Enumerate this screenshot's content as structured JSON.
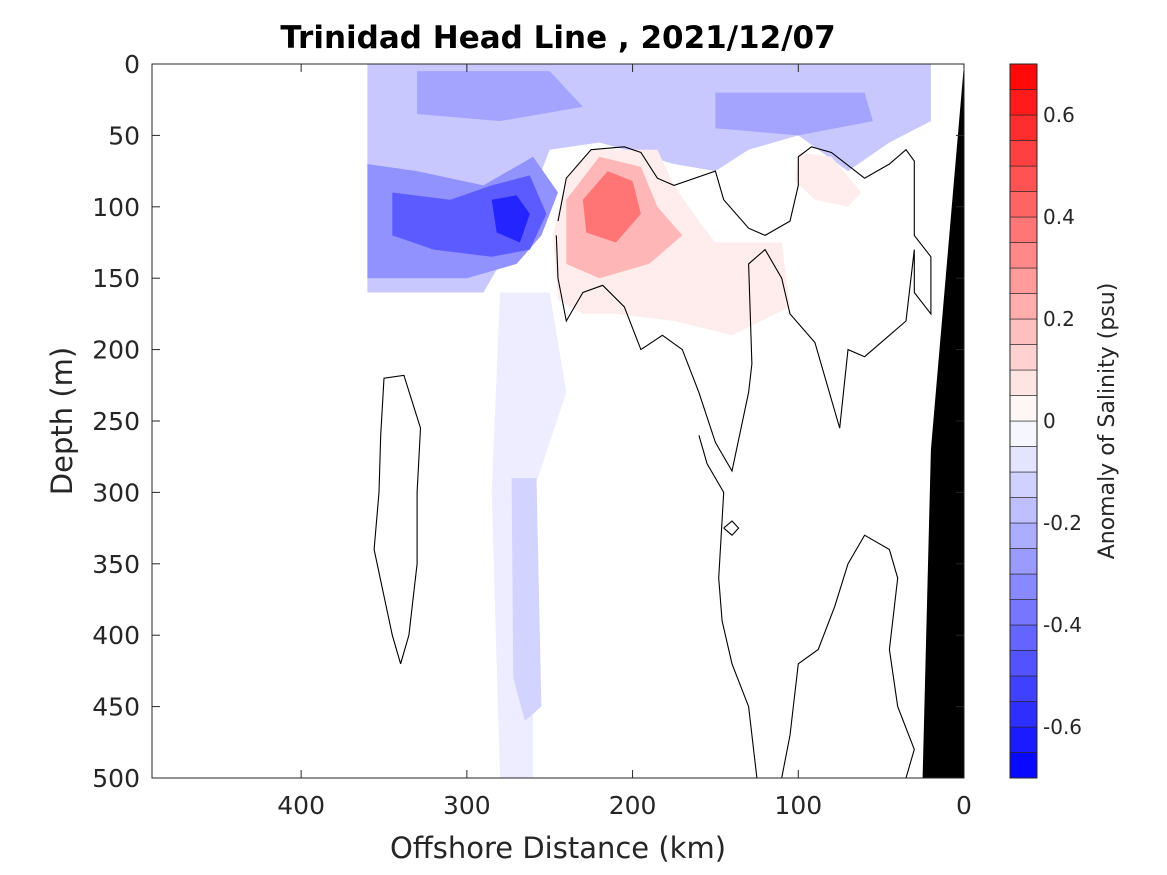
{
  "chart_data": {
    "type": "heatmap",
    "title": "Trinidad Head Line , 2021/12/07",
    "xlabel": "Offshore Distance (km)",
    "ylabel": "Depth (m)",
    "xlim": [
      490,
      0
    ],
    "ylim": [
      0,
      500
    ],
    "x_reversed": true,
    "y_reversed": true,
    "xticks": [
      400,
      300,
      200,
      100,
      0
    ],
    "xtick_labels": [
      "400",
      "300",
      "200",
      "100",
      "0"
    ],
    "yticks": [
      0,
      50,
      100,
      150,
      200,
      250,
      300,
      350,
      400,
      450,
      500
    ],
    "ytick_labels": [
      "0",
      "50",
      "100",
      "150",
      "200",
      "250",
      "300",
      "350",
      "400",
      "450",
      "500"
    ],
    "colorbar": {
      "label": "Anomaly of Salinity (psu)",
      "range": [
        -0.7,
        0.7
      ],
      "step": 0.05,
      "ticks": [
        -0.6,
        -0.4,
        -0.2,
        0,
        0.2,
        0.4,
        0.6
      ],
      "tick_labels": [
        "-0.6",
        "-0.4",
        "-0.2",
        "0",
        "0.2",
        "0.4",
        "0.6"
      ],
      "neg_color": "#0000ff",
      "pos_color": "#ff0000",
      "mid_color": "#ffffff"
    },
    "data_extent_km": [
      20,
      360
    ],
    "bathymetry_color": "#000000",
    "zero_contour_color": "#000000",
    "fields": [
      {
        "name": "upper-negative-layer",
        "polygon": [
          [
            360,
            0
          ],
          [
            20,
            0
          ],
          [
            20,
            40
          ],
          [
            45,
            55
          ],
          [
            70,
            75
          ],
          [
            100,
            50
          ],
          [
            130,
            60
          ],
          [
            150,
            75
          ],
          [
            175,
            70
          ],
          [
            220,
            55
          ],
          [
            250,
            60
          ],
          [
            270,
            120
          ],
          [
            290,
            160
          ],
          [
            330,
            160
          ],
          [
            360,
            160
          ]
        ],
        "value": -0.15
      },
      {
        "name": "near-surface-core-a",
        "polygon": [
          [
            330,
            5
          ],
          [
            250,
            5
          ],
          [
            230,
            30
          ],
          [
            280,
            40
          ],
          [
            330,
            35
          ]
        ],
        "value": -0.25
      },
      {
        "name": "near-surface-core-b",
        "polygon": [
          [
            150,
            20
          ],
          [
            60,
            20
          ],
          [
            55,
            40
          ],
          [
            100,
            50
          ],
          [
            150,
            45
          ]
        ],
        "value": -0.25
      },
      {
        "name": "subsurface-negative",
        "polygon": [
          [
            360,
            70
          ],
          [
            330,
            75
          ],
          [
            290,
            85
          ],
          [
            260,
            65
          ],
          [
            245,
            90
          ],
          [
            255,
            120
          ],
          [
            270,
            140
          ],
          [
            300,
            150
          ],
          [
            360,
            150
          ]
        ],
        "value": -0.3
      },
      {
        "name": "subsurface-core-outer",
        "polygon": [
          [
            345,
            90
          ],
          [
            310,
            95
          ],
          [
            285,
            85
          ],
          [
            262,
            78
          ],
          [
            252,
            105
          ],
          [
            262,
            130
          ],
          [
            285,
            135
          ],
          [
            320,
            130
          ],
          [
            345,
            120
          ]
        ],
        "value": -0.45
      },
      {
        "name": "subsurface-core-inner",
        "polygon": [
          [
            285,
            95
          ],
          [
            270,
            92
          ],
          [
            262,
            105
          ],
          [
            268,
            125
          ],
          [
            282,
            118
          ]
        ],
        "value": -0.6
      },
      {
        "name": "deep-negative-column",
        "polygon": [
          [
            280,
            160
          ],
          [
            250,
            160
          ],
          [
            240,
            230
          ],
          [
            260,
            300
          ],
          [
            260,
            500
          ],
          [
            280,
            500
          ],
          [
            285,
            300
          ]
        ],
        "value": -0.05
      },
      {
        "name": "deep-negative-core",
        "polygon": [
          [
            273,
            290
          ],
          [
            258,
            290
          ],
          [
            255,
            450
          ],
          [
            265,
            460
          ],
          [
            272,
            430
          ]
        ],
        "value": -0.12
      },
      {
        "name": "positive-lens-outer",
        "polygon": [
          [
            240,
            80
          ],
          [
            225,
            60
          ],
          [
            185,
            60
          ],
          [
            175,
            85
          ],
          [
            160,
            110
          ],
          [
            150,
            125
          ],
          [
            110,
            125
          ],
          [
            105,
            170
          ],
          [
            140,
            190
          ],
          [
            175,
            180
          ],
          [
            210,
            175
          ],
          [
            230,
            175
          ],
          [
            245,
            165
          ],
          [
            248,
            120
          ]
        ],
        "value": 0.05
      },
      {
        "name": "positive-lens-mid",
        "polygon": [
          [
            240,
            95
          ],
          [
            220,
            65
          ],
          [
            195,
            72
          ],
          [
            185,
            100
          ],
          [
            170,
            120
          ],
          [
            190,
            140
          ],
          [
            220,
            150
          ],
          [
            240,
            140
          ]
        ],
        "value": 0.2
      },
      {
        "name": "positive-lens-inner",
        "polygon": [
          [
            230,
            95
          ],
          [
            215,
            75
          ],
          [
            200,
            82
          ],
          [
            195,
            105
          ],
          [
            210,
            125
          ],
          [
            228,
            118
          ]
        ],
        "value": 0.38
      },
      {
        "name": "positive-patch-east",
        "polygon": [
          [
            100,
            62
          ],
          [
            80,
            65
          ],
          [
            62,
            90
          ],
          [
            70,
            100
          ],
          [
            90,
            95
          ],
          [
            102,
            82
          ]
        ],
        "value": 0.05
      }
    ],
    "zero_contours": [
      {
        "name": "main-zero-contour",
        "points": [
          [
            245,
            110
          ],
          [
            240,
            80
          ],
          [
            225,
            60
          ],
          [
            205,
            58
          ],
          [
            195,
            62
          ],
          [
            185,
            80
          ],
          [
            175,
            85
          ],
          [
            150,
            75
          ],
          [
            145,
            95
          ],
          [
            130,
            115
          ],
          [
            120,
            120
          ],
          [
            105,
            110
          ],
          [
            100,
            85
          ],
          [
            100,
            65
          ],
          [
            92,
            58
          ],
          [
            80,
            62
          ],
          [
            60,
            80
          ],
          [
            45,
            70
          ],
          [
            35,
            60
          ],
          [
            30,
            68
          ],
          [
            30,
            120
          ],
          [
            20,
            135
          ],
          [
            20,
            175
          ],
          [
            30,
            160
          ],
          [
            30,
            130
          ],
          [
            35,
            180
          ],
          [
            45,
            190
          ],
          [
            60,
            205
          ],
          [
            70,
            200
          ],
          [
            75,
            255
          ],
          [
            90,
            195
          ],
          [
            105,
            175
          ],
          [
            110,
            150
          ],
          [
            120,
            130
          ],
          [
            130,
            140
          ],
          [
            128,
            210
          ],
          [
            130,
            230
          ],
          [
            140,
            285
          ],
          [
            150,
            265
          ],
          [
            160,
            230
          ],
          [
            170,
            200
          ],
          [
            182,
            190
          ],
          [
            195,
            200
          ],
          [
            205,
            170
          ],
          [
            218,
            155
          ],
          [
            230,
            160
          ],
          [
            240,
            180
          ],
          [
            245,
            150
          ],
          [
            246,
            120
          ]
        ]
      },
      {
        "name": "deep-zero-contour-a",
        "points": [
          [
            340,
            420
          ],
          [
            345,
            400
          ],
          [
            356,
            340
          ],
          [
            353,
            300
          ],
          [
            352,
            260
          ],
          [
            350,
            220
          ],
          [
            338,
            218
          ],
          [
            328,
            255
          ],
          [
            330,
            300
          ],
          [
            330,
            350
          ],
          [
            335,
            400
          ],
          [
            340,
            420
          ]
        ]
      },
      {
        "name": "deep-zero-contour-b",
        "points": [
          [
            160,
            260
          ],
          [
            155,
            280
          ],
          [
            145,
            300
          ],
          [
            148,
            360
          ],
          [
            146,
            390
          ],
          [
            140,
            420
          ],
          [
            130,
            450
          ],
          [
            125,
            500
          ],
          [
            110,
            500
          ],
          [
            105,
            470
          ],
          [
            100,
            420
          ],
          [
            88,
            410
          ],
          [
            78,
            380
          ],
          [
            70,
            350
          ],
          [
            60,
            330
          ],
          [
            45,
            340
          ],
          [
            40,
            360
          ],
          [
            45,
            410
          ],
          [
            40,
            450
          ],
          [
            30,
            480
          ],
          [
            35,
            500
          ]
        ]
      },
      {
        "name": "deep-zero-contour-c",
        "points": [
          [
            145,
            325
          ],
          [
            140,
            320
          ],
          [
            136,
            325
          ],
          [
            140,
            330
          ],
          [
            145,
            325
          ]
        ]
      }
    ],
    "bathymetry_polygon": [
      [
        0,
        0
      ],
      [
        20,
        270
      ],
      [
        25,
        500
      ],
      [
        0,
        500
      ]
    ]
  }
}
